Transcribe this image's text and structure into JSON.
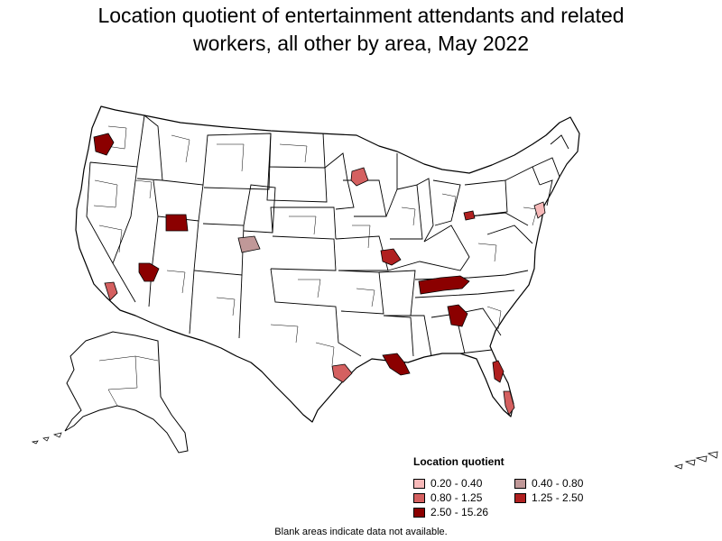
{
  "title_line1": "Location quotient of entertainment attendants and related",
  "title_line2": "workers, all other by area, May 2022",
  "legend": {
    "title": "Location quotient",
    "items": [
      {
        "label": "0.20 - 0.40",
        "color": "#f7b9b9"
      },
      {
        "label": "0.40 - 0.80",
        "color": "#c09898"
      },
      {
        "label": "0.80 - 1.25",
        "color": "#d46060"
      },
      {
        "label": "1.25 - 2.50",
        "color": "#b02020"
      },
      {
        "label": "2.50 - 15.26",
        "color": "#8b0000"
      }
    ]
  },
  "footnote": "Blank areas indicate data not available.",
  "colors": {
    "outline": "#000000",
    "land": "#ffffff"
  }
}
